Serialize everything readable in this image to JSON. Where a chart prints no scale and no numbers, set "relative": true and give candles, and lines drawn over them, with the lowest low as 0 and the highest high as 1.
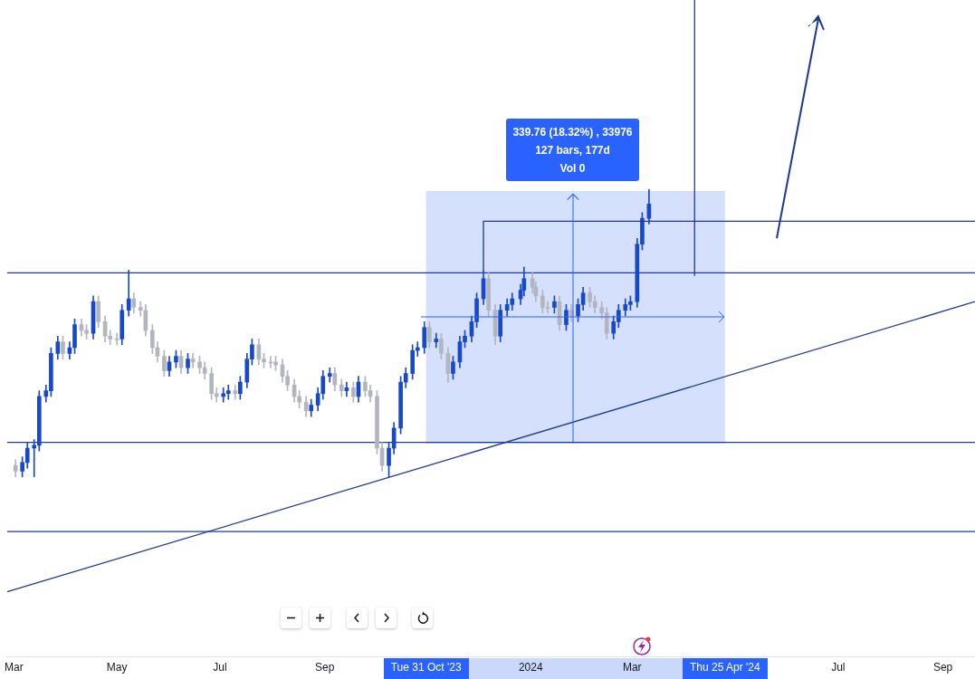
{
  "chart_data": {
    "type": "candlestick",
    "relative": true,
    "tick_labels": "x",
    "xlim": [
      "2023-02-25",
      "2024-09-20"
    ],
    "xticks": [
      {
        "value": "2023-03-01",
        "label": "Mar"
      },
      {
        "value": "2023-05-01",
        "label": "May"
      },
      {
        "value": "2023-07-01",
        "label": "Jul"
      },
      {
        "value": "2023-09-01",
        "label": "Sep"
      },
      {
        "value": "2023-10-31",
        "label": "Tue 31 Oct '23"
      },
      {
        "value": "2024-01-01",
        "label": "2024"
      },
      {
        "value": "2024-03-01",
        "label": "Mar"
      },
      {
        "value": "2024-04-25",
        "label": "Thu 25 Apr '24"
      },
      {
        "value": "2024-07-01",
        "label": "Jul"
      },
      {
        "value": "2024-09-01",
        "label": "Sep"
      }
    ],
    "series": [
      {
        "type": "candlestick",
        "color": "#1848cc",
        "x": [
          "2023-03-06",
          "2023-03-09",
          "2023-03-13",
          "2023-03-16",
          "2023-03-20",
          "2023-03-23",
          "2023-03-27",
          "2023-04-03",
          "2023-04-06",
          "2023-04-17",
          "2023-05-04",
          "2023-05-08",
          "2023-06-01",
          "2023-06-05",
          "2023-06-12",
          "2023-07-03",
          "2023-07-06",
          "2023-07-13",
          "2023-07-17",
          "2023-07-20",
          "2023-08-24",
          "2023-08-28",
          "2023-08-31",
          "2023-09-04",
          "2023-09-14",
          "2023-09-21",
          "2023-10-09",
          "2023-10-12",
          "2023-10-16",
          "2023-10-19",
          "2023-10-23",
          "2023-10-26",
          "2023-10-30",
          "2023-11-06",
          "2023-11-16",
          "2023-11-20",
          "2023-11-23",
          "2023-11-27",
          "2023-11-30",
          "2023-12-04",
          "2023-12-14",
          "2023-12-18",
          "2023-12-21",
          "2023-12-26",
          "2023-12-28",
          "2024-01-15",
          "2024-01-22",
          "2024-01-29",
          "2024-02-01",
          "2024-02-19",
          "2024-02-22",
          "2024-02-26",
          "2024-02-29",
          "2024-03-04",
          "2024-03-07",
          "2024-03-11"
        ],
        "ohlc": [
          [
            0.02,
            0.07,
            0,
            0.05
          ],
          [
            0.05,
            0.12,
            0.03,
            0.1
          ],
          [
            0.1,
            0.13,
            0,
            0.11
          ],
          [
            0.11,
            0.3,
            0.09,
            0.28
          ],
          [
            0.28,
            0.32,
            0.26,
            0.3
          ],
          [
            0.3,
            0.45,
            0.28,
            0.43
          ],
          [
            0.43,
            0.49,
            0.41,
            0.47
          ],
          [
            0.43,
            0.47,
            0.41,
            0.45
          ],
          [
            0.45,
            0.55,
            0.43,
            0.53
          ],
          [
            0.5,
            0.63,
            0.48,
            0.61
          ],
          [
            0.48,
            0.6,
            0.46,
            0.58
          ],
          [
            0.58,
            0.72,
            0.56,
            0.62
          ],
          [
            0.37,
            0.42,
            0.35,
            0.4
          ],
          [
            0.4,
            0.44,
            0.38,
            0.42
          ],
          [
            0.38,
            0.43,
            0.36,
            0.41
          ],
          [
            0.28,
            0.31,
            0.26,
            0.29
          ],
          [
            0.29,
            0.32,
            0.27,
            0.3
          ],
          [
            0.29,
            0.35,
            0.27,
            0.33
          ],
          [
            0.33,
            0.43,
            0.31,
            0.41
          ],
          [
            0.41,
            0.48,
            0.39,
            0.46
          ],
          [
            0.23,
            0.27,
            0.21,
            0.25
          ],
          [
            0.25,
            0.31,
            0.23,
            0.29
          ],
          [
            0.29,
            0.37,
            0.27,
            0.35
          ],
          [
            0.35,
            0.38,
            0.33,
            0.36
          ],
          [
            0.3,
            0.33,
            0.28,
            0.31
          ],
          [
            0.28,
            0.35,
            0.26,
            0.33
          ],
          [
            0.04,
            0.12,
            0,
            0.1
          ],
          [
            0.1,
            0.19,
            0.08,
            0.17
          ],
          [
            0.17,
            0.35,
            0.15,
            0.33
          ],
          [
            0.33,
            0.38,
            0.31,
            0.36
          ],
          [
            0.36,
            0.46,
            0.34,
            0.44
          ],
          [
            0.44,
            0.47,
            0.42,
            0.45
          ],
          [
            0.45,
            0.54,
            0.43,
            0.52
          ],
          [
            0.47,
            0.5,
            0.45,
            0.48
          ],
          [
            0.36,
            0.42,
            0.34,
            0.4
          ],
          [
            0.4,
            0.49,
            0.38,
            0.47
          ],
          [
            0.47,
            0.51,
            0.45,
            0.49
          ],
          [
            0.49,
            0.56,
            0.47,
            0.54
          ],
          [
            0.54,
            0.64,
            0.52,
            0.62
          ],
          [
            0.62,
            0.72,
            0.6,
            0.69
          ],
          [
            0.49,
            0.6,
            0.47,
            0.58
          ],
          [
            0.58,
            0.62,
            0.56,
            0.6
          ],
          [
            0.6,
            0.64,
            0.58,
            0.62
          ],
          [
            0.62,
            0.67,
            0.6,
            0.65
          ],
          [
            0.65,
            0.73,
            0.63,
            0.69
          ],
          [
            0.59,
            0.63,
            0.57,
            0.61
          ],
          [
            0.53,
            0.6,
            0.51,
            0.58
          ],
          [
            0.56,
            0.62,
            0.54,
            0.6
          ],
          [
            0.6,
            0.66,
            0.58,
            0.64
          ],
          [
            0.5,
            0.56,
            0.48,
            0.54
          ],
          [
            0.54,
            0.6,
            0.52,
            0.58
          ],
          [
            0.58,
            0.62,
            0.56,
            0.6
          ],
          [
            0.6,
            0.63,
            0.58,
            0.61
          ],
          [
            0.61,
            0.83,
            0.59,
            0.81
          ],
          [
            0.81,
            0.92,
            0.79,
            0.9
          ],
          [
            0.9,
            1,
            0.88,
            0.95
          ]
        ]
      },
      {
        "type": "candlestick",
        "color": "#b2b5be",
        "x": [
          "2023-03-02",
          "2023-03-30",
          "2023-04-10",
          "2023-04-13",
          "2023-04-20",
          "2023-04-24",
          "2023-04-27",
          "2023-05-01",
          "2023-05-11",
          "2023-05-15",
          "2023-05-18",
          "2023-05-22",
          "2023-05-25",
          "2023-05-29",
          "2023-06-08",
          "2023-06-15",
          "2023-06-19",
          "2023-06-22",
          "2023-06-26",
          "2023-06-29",
          "2023-07-10",
          "2023-07-24",
          "2023-07-27",
          "2023-07-31",
          "2023-08-03",
          "2023-08-07",
          "2023-08-10",
          "2023-08-14",
          "2023-08-17",
          "2023-08-21",
          "2023-09-07",
          "2023-09-11",
          "2023-09-18",
          "2023-09-25",
          "2023-09-28",
          "2023-10-02",
          "2023-10-05",
          "2023-11-02",
          "2023-11-09",
          "2023-11-13",
          "2023-12-07",
          "2023-12-11",
          "2024-01-02",
          "2024-01-04",
          "2024-01-08",
          "2024-01-11",
          "2024-01-18",
          "2024-01-25",
          "2024-02-05",
          "2024-02-08",
          "2024-02-12",
          "2024-02-15"
        ],
        "ohlc": [
          [
            0.04,
            0.06,
            0,
            0.02
          ],
          [
            0.47,
            0.49,
            0.41,
            0.43
          ],
          [
            0.53,
            0.55,
            0.49,
            0.51
          ],
          [
            0.51,
            0.53,
            0.48,
            0.5
          ],
          [
            0.61,
            0.63,
            0.52,
            0.54
          ],
          [
            0.54,
            0.56,
            0.47,
            0.49
          ],
          [
            0.49,
            0.51,
            0.46,
            0.48
          ],
          [
            0.48,
            0.5,
            0.46,
            0.48
          ],
          [
            0.62,
            0.64,
            0.57,
            0.59
          ],
          [
            0.59,
            0.61,
            0.56,
            0.58
          ],
          [
            0.58,
            0.6,
            0.49,
            0.51
          ],
          [
            0.51,
            0.53,
            0.43,
            0.45
          ],
          [
            0.45,
            0.47,
            0.4,
            0.42
          ],
          [
            0.42,
            0.44,
            0.35,
            0.37
          ],
          [
            0.42,
            0.44,
            0.36,
            0.38
          ],
          [
            0.41,
            0.43,
            0.38,
            0.4
          ],
          [
            0.4,
            0.42,
            0.36,
            0.38
          ],
          [
            0.38,
            0.4,
            0.34,
            0.36
          ],
          [
            0.36,
            0.38,
            0.27,
            0.29
          ],
          [
            0.29,
            0.31,
            0.26,
            0.28
          ],
          [
            0.3,
            0.32,
            0.27,
            0.29
          ],
          [
            0.46,
            0.48,
            0.39,
            0.41
          ],
          [
            0.41,
            0.43,
            0.38,
            0.4
          ],
          [
            0.4,
            0.42,
            0.38,
            0.4
          ],
          [
            0.4,
            0.42,
            0.37,
            0.39
          ],
          [
            0.39,
            0.41,
            0.33,
            0.35
          ],
          [
            0.35,
            0.37,
            0.3,
            0.32
          ],
          [
            0.32,
            0.34,
            0.26,
            0.28
          ],
          [
            0.28,
            0.3,
            0.24,
            0.26
          ],
          [
            0.26,
            0.28,
            0.21,
            0.23
          ],
          [
            0.36,
            0.38,
            0.3,
            0.32
          ],
          [
            0.32,
            0.34,
            0.28,
            0.3
          ],
          [
            0.31,
            0.33,
            0.26,
            0.28
          ],
          [
            0.33,
            0.35,
            0.28,
            0.3
          ],
          [
            0.3,
            0.32,
            0.26,
            0.28
          ],
          [
            0.28,
            0.3,
            0.08,
            0.1
          ],
          [
            0.1,
            0.12,
            0.02,
            0.04
          ],
          [
            0.52,
            0.54,
            0.45,
            0.47
          ],
          [
            0.48,
            0.5,
            0.41,
            0.43
          ],
          [
            0.43,
            0.45,
            0.33,
            0.36
          ],
          [
            0.69,
            0.71,
            0.56,
            0.58
          ],
          [
            0.58,
            0.6,
            0.46,
            0.49
          ],
          [
            0.69,
            0.71,
            0.64,
            0.66
          ],
          [
            0.66,
            0.68,
            0.61,
            0.63
          ],
          [
            0.63,
            0.65,
            0.57,
            0.59
          ],
          [
            0.59,
            0.61,
            0.57,
            0.59
          ],
          [
            0.61,
            0.63,
            0.51,
            0.53
          ],
          [
            0.58,
            0.6,
            0.54,
            0.56
          ],
          [
            0.64,
            0.66,
            0.59,
            0.61
          ],
          [
            0.61,
            0.63,
            0.57,
            0.59
          ],
          [
            0.59,
            0.61,
            0.55,
            0.57
          ],
          [
            0.57,
            0.59,
            0.48,
            0.5
          ]
        ]
      },
      {
        "type": "line",
        "color": "#1f3a93",
        "x": [
          "2023-02-25",
          "2024-09-20"
        ],
        "values": [
          -0.4,
          0.61
        ]
      },
      {
        "type": "line",
        "color": "#1f3a93",
        "x": [
          "2023-12-04",
          "2023-12-04",
          "2024-09-20"
        ],
        "values": [
          0.72,
          0.89,
          0.89
        ]
      },
      {
        "type": "line",
        "color": "#1f3a93",
        "x": [
          "2024-04-07",
          "2024-04-07"
        ],
        "values": [
          0.7,
          1.66
        ]
      }
    ],
    "ref_lines": [
      {
        "axis": "y",
        "value": 0.71,
        "color": "#1f3a93"
      },
      {
        "axis": "y",
        "value": 0.12,
        "color": "#1f3a93"
      },
      {
        "axis": "y",
        "value": -0.19,
        "color": "#1f3a93"
      }
    ],
    "bands": [
      {
        "axis": "x",
        "from": "2023-10-31",
        "to": "2024-04-25",
        "color": "#c9d8fb"
      }
    ],
    "annotations": [
      "339.76 (18.32%) , 33976",
      "127 bars, 177d",
      "Vol 0"
    ]
  }
}
